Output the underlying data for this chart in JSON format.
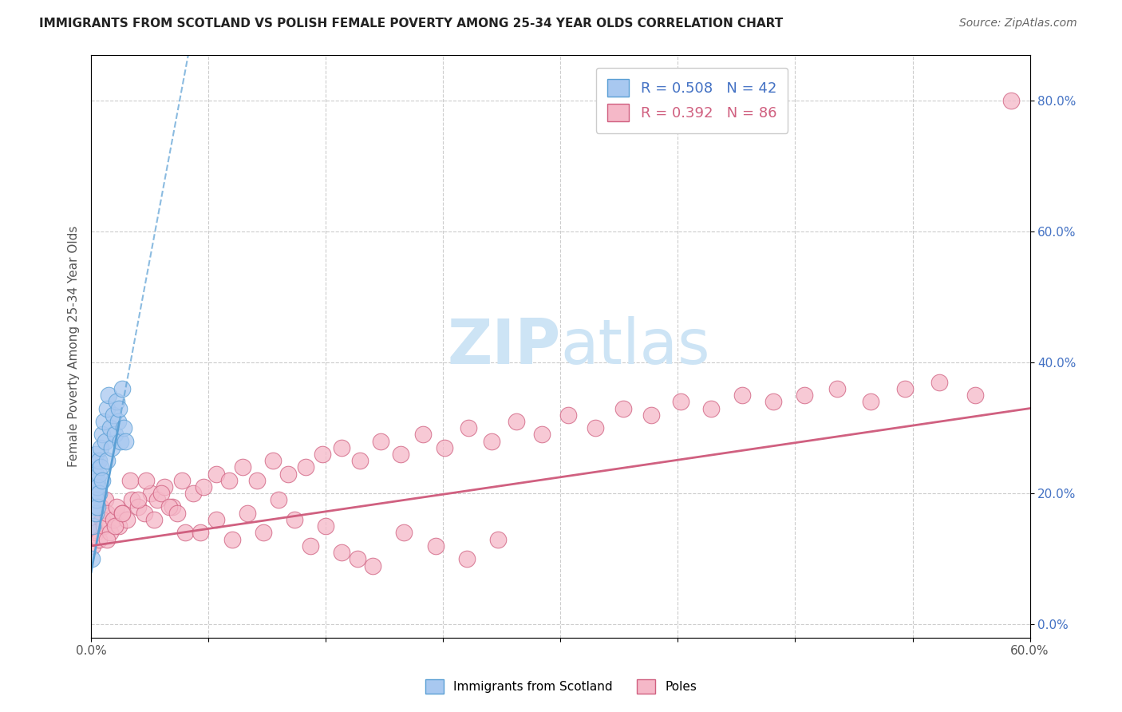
{
  "title": "IMMIGRANTS FROM SCOTLAND VS POLISH FEMALE POVERTY AMONG 25-34 YEAR OLDS CORRELATION CHART",
  "source": "Source: ZipAtlas.com",
  "ylabel": "Female Poverty Among 25-34 Year Olds",
  "xlim": [
    0,
    0.6
  ],
  "ylim": [
    -0.02,
    0.87
  ],
  "xticks": [
    0.0,
    0.075,
    0.15,
    0.225,
    0.3,
    0.375,
    0.45,
    0.525,
    0.6
  ],
  "xtick_labels": [
    "0.0%",
    "",
    "",
    "",
    "",
    "",
    "",
    "",
    "60.0%"
  ],
  "yticks_right": [
    0.0,
    0.2,
    0.4,
    0.6,
    0.8
  ],
  "scotland_color": "#a8c8f0",
  "scotland_edge": "#5a9fd4",
  "poles_color": "#f5b8c8",
  "poles_edge": "#d06080",
  "scotland_R": 0.508,
  "scotland_N": 42,
  "poles_R": 0.392,
  "poles_N": 86,
  "scotland_x": [
    0.0005,
    0.001,
    0.001,
    0.001,
    0.0015,
    0.0015,
    0.002,
    0.002,
    0.002,
    0.002,
    0.0025,
    0.003,
    0.003,
    0.003,
    0.003,
    0.0035,
    0.004,
    0.004,
    0.004,
    0.005,
    0.005,
    0.005,
    0.006,
    0.006,
    0.007,
    0.007,
    0.008,
    0.009,
    0.01,
    0.01,
    0.011,
    0.012,
    0.013,
    0.014,
    0.015,
    0.016,
    0.017,
    0.018,
    0.019,
    0.02,
    0.021,
    0.022
  ],
  "scotland_y": [
    0.1,
    0.15,
    0.18,
    0.21,
    0.22,
    0.24,
    0.2,
    0.23,
    0.25,
    0.19,
    0.2,
    0.21,
    0.23,
    0.26,
    0.17,
    0.19,
    0.22,
    0.21,
    0.18,
    0.23,
    0.25,
    0.2,
    0.27,
    0.24,
    0.29,
    0.22,
    0.31,
    0.28,
    0.33,
    0.25,
    0.35,
    0.3,
    0.27,
    0.32,
    0.29,
    0.34,
    0.31,
    0.33,
    0.28,
    0.36,
    0.3,
    0.28
  ],
  "poles_x": [
    0.001,
    0.002,
    0.003,
    0.004,
    0.005,
    0.006,
    0.007,
    0.008,
    0.009,
    0.01,
    0.012,
    0.014,
    0.016,
    0.018,
    0.02,
    0.023,
    0.026,
    0.03,
    0.034,
    0.038,
    0.042,
    0.047,
    0.052,
    0.058,
    0.065,
    0.072,
    0.08,
    0.088,
    0.097,
    0.106,
    0.116,
    0.126,
    0.137,
    0.148,
    0.16,
    0.172,
    0.185,
    0.198,
    0.212,
    0.226,
    0.241,
    0.256,
    0.272,
    0.288,
    0.305,
    0.322,
    0.34,
    0.358,
    0.377,
    0.396,
    0.416,
    0.436,
    0.456,
    0.477,
    0.498,
    0.52,
    0.542,
    0.565,
    0.588,
    0.01,
    0.015,
    0.02,
    0.025,
    0.03,
    0.035,
    0.04,
    0.045,
    0.05,
    0.055,
    0.06,
    0.07,
    0.08,
    0.09,
    0.1,
    0.11,
    0.12,
    0.13,
    0.14,
    0.15,
    0.16,
    0.17,
    0.18,
    0.2,
    0.22,
    0.24,
    0.26
  ],
  "poles_y": [
    0.12,
    0.15,
    0.14,
    0.17,
    0.13,
    0.18,
    0.16,
    0.15,
    0.19,
    0.17,
    0.14,
    0.16,
    0.18,
    0.15,
    0.17,
    0.16,
    0.19,
    0.18,
    0.17,
    0.2,
    0.19,
    0.21,
    0.18,
    0.22,
    0.2,
    0.21,
    0.23,
    0.22,
    0.24,
    0.22,
    0.25,
    0.23,
    0.24,
    0.26,
    0.27,
    0.25,
    0.28,
    0.26,
    0.29,
    0.27,
    0.3,
    0.28,
    0.31,
    0.29,
    0.32,
    0.3,
    0.33,
    0.32,
    0.34,
    0.33,
    0.35,
    0.34,
    0.35,
    0.36,
    0.34,
    0.36,
    0.37,
    0.35,
    0.8,
    0.13,
    0.15,
    0.17,
    0.22,
    0.19,
    0.22,
    0.16,
    0.2,
    0.18,
    0.17,
    0.14,
    0.14,
    0.16,
    0.13,
    0.17,
    0.14,
    0.19,
    0.16,
    0.12,
    0.15,
    0.11,
    0.1,
    0.09,
    0.14,
    0.12,
    0.1,
    0.13
  ],
  "background_color": "#ffffff",
  "grid_color": "#cccccc",
  "watermark_color": "#cde4f5",
  "watermark_fontsize": 56
}
